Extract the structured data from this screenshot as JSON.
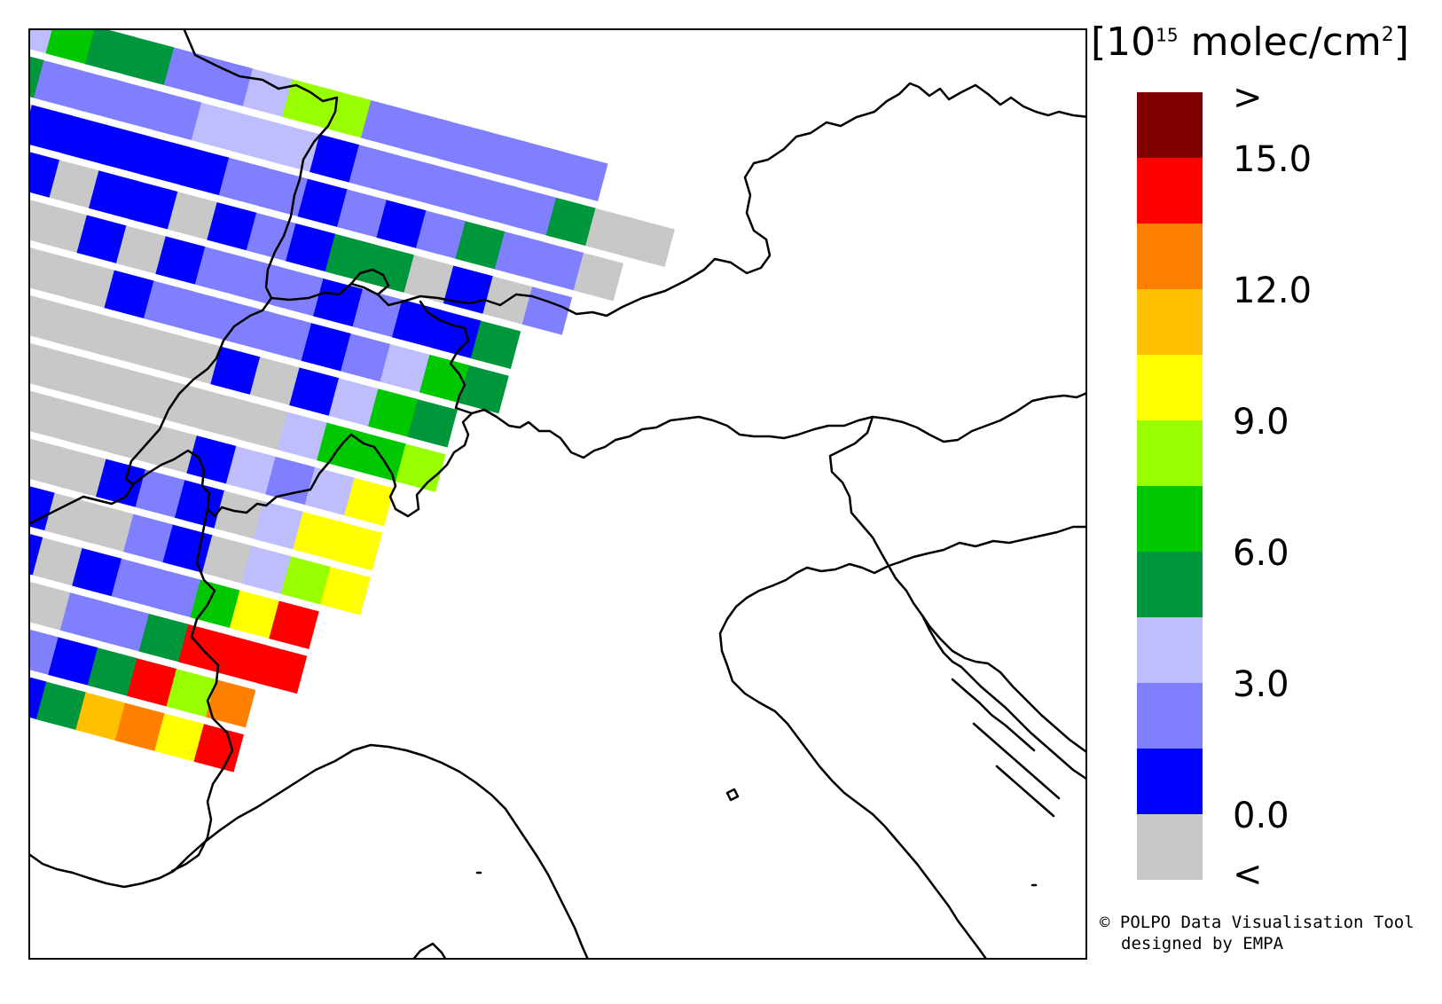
{
  "unit": {
    "bracket_open": "[",
    "base": "10",
    "exponent": "15",
    "text": "molec/cm",
    "square": "2",
    "bracket_close": "]"
  },
  "colorbar": {
    "colors_top_to_bottom": [
      "#800000",
      "#ff0000",
      "#ff8000",
      "#ffc000",
      "#ffff00",
      "#99ff00",
      "#00c800",
      "#00963c",
      "#bebeff",
      "#8080ff",
      "#0000ff",
      "#c8c8c8"
    ],
    "labels": [
      ">",
      "15.0",
      "12.0",
      "9.0",
      "6.0",
      "3.0",
      "0.0",
      "<"
    ]
  },
  "credit": {
    "symbol": "©",
    "line1": "POLPO Data Visualisation Tool",
    "line2": "designed by EMPA"
  },
  "swath": {
    "categories": [
      ">",
      "15-16.5",
      "13.5-15",
      "12-13.5",
      "10.5-12",
      "9-10.5",
      "7.5-9",
      "6-7.5",
      "4.5-6",
      "3-4.5",
      "1.5-3",
      "0-1.5",
      "<"
    ],
    "rows": [
      [
        "8",
        "8",
        "6",
        "7",
        "7",
        "9",
        "9",
        "8",
        "5",
        "5",
        "9",
        "9",
        "9",
        "9",
        "9",
        "9"
      ],
      [
        "9",
        "7",
        "9",
        "9",
        "9",
        "9",
        "8",
        "8",
        "8",
        "10",
        "9",
        "9",
        "9",
        "9",
        "9",
        "7",
        "12",
        "12"
      ],
      [
        "9",
        "11",
        "10",
        "10",
        "10",
        "10",
        "10",
        "9",
        "9",
        "10",
        "9",
        "10",
        "9",
        "7",
        "9",
        "9",
        "12"
      ],
      [
        "10",
        "11",
        "10",
        "11",
        "10",
        "10",
        "11",
        "10",
        "9",
        "10",
        "7",
        "7",
        "12",
        "10",
        "11",
        "9"
      ],
      [
        "12",
        "10",
        "11",
        "11",
        "10",
        "11",
        "10",
        "9",
        "9",
        "9",
        "10",
        "9",
        "10",
        "10",
        "7"
      ],
      [
        "11",
        "11",
        "11",
        "12",
        "11",
        "10",
        "9",
        "9",
        "9",
        "9",
        "10",
        "9",
        "8",
        "6",
        "7"
      ],
      [
        "11",
        "10",
        "11",
        "11",
        "11",
        "12",
        "11",
        "11",
        "10",
        "11",
        "10",
        "8",
        "6",
        "7"
      ],
      [
        "10",
        "11",
        "11",
        "12",
        "11",
        "11",
        "11",
        "11",
        "12",
        "11",
        "8",
        "6",
        "6",
        "5"
      ],
      [
        "12",
        "10",
        "11",
        "12",
        "11",
        "11",
        "11",
        "11",
        "10",
        "8",
        "9",
        "8",
        "4"
      ],
      [
        "12",
        "10",
        "11",
        "10",
        "11",
        "11",
        "10",
        "9",
        "10",
        "11",
        "8",
        "4",
        "4"
      ],
      [
        "11",
        "10",
        "11",
        "11",
        "10",
        "11",
        "11",
        "9",
        "10",
        "11",
        "8",
        "5",
        "4"
      ],
      [
        "11",
        "10",
        "11",
        "11",
        "10",
        "11",
        "10",
        "9",
        "9",
        "6",
        "4",
        "1"
      ],
      [
        "11",
        "10",
        "12",
        "11",
        "11",
        "11",
        "9",
        "9",
        "7",
        "1",
        "1",
        "1"
      ],
      [
        "11",
        "11",
        "11",
        "11",
        "11",
        "9",
        "10",
        "7",
        "1",
        "5",
        "2"
      ],
      [
        "11",
        "11",
        "11",
        "11",
        "11",
        "10",
        "7",
        "3",
        "2",
        "4",
        "1"
      ]
    ]
  }
}
